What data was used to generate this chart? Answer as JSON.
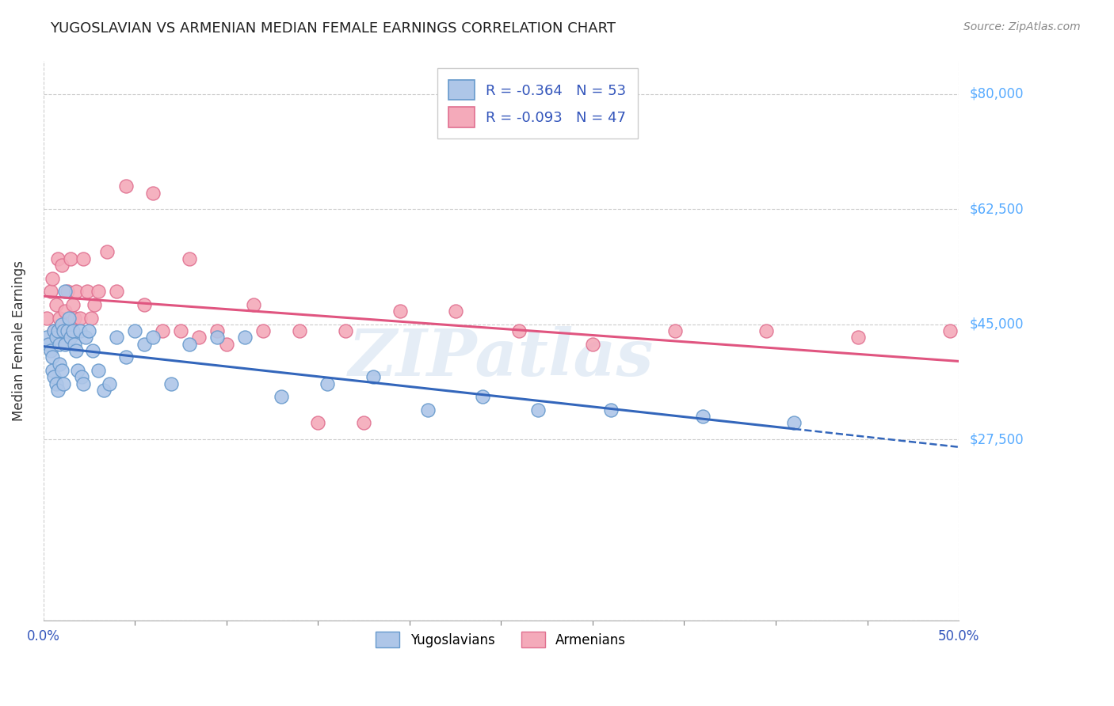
{
  "title": "YUGOSLAVIAN VS ARMENIAN MEDIAN FEMALE EARNINGS CORRELATION CHART",
  "source": "Source: ZipAtlas.com",
  "ylabel": "Median Female Earnings",
  "xlim": [
    0.0,
    0.5
  ],
  "ylim": [
    0,
    85000
  ],
  "yug_R": -0.364,
  "yug_N": 53,
  "arm_R": -0.093,
  "arm_N": 47,
  "blue_face_color": "#AEC6E8",
  "blue_edge_color": "#6699CC",
  "pink_face_color": "#F4AABA",
  "pink_edge_color": "#E07090",
  "blue_line_color": "#3366BB",
  "pink_line_color": "#E05580",
  "watermark": "ZIPatlas",
  "background_color": "#FFFFFF",
  "grid_color": "#CCCCCC",
  "right_label_color": "#55AAFF",
  "legend_text_color": "#3355BB",
  "ylabel_vals": [
    0,
    27500,
    45000,
    62500,
    80000
  ],
  "ylabel_labels": [
    "",
    "$27,500",
    "$45,000",
    "$62,500",
    "$80,000"
  ],
  "yug_points_x": [
    0.002,
    0.003,
    0.004,
    0.005,
    0.005,
    0.006,
    0.006,
    0.007,
    0.007,
    0.008,
    0.008,
    0.009,
    0.009,
    0.01,
    0.01,
    0.011,
    0.011,
    0.012,
    0.012,
    0.013,
    0.014,
    0.015,
    0.016,
    0.017,
    0.018,
    0.019,
    0.02,
    0.021,
    0.022,
    0.023,
    0.025,
    0.027,
    0.03,
    0.033,
    0.036,
    0.04,
    0.045,
    0.05,
    0.055,
    0.06,
    0.07,
    0.08,
    0.095,
    0.11,
    0.13,
    0.155,
    0.18,
    0.21,
    0.24,
    0.27,
    0.31,
    0.36,
    0.41
  ],
  "yug_points_y": [
    43000,
    42000,
    41000,
    40000,
    38000,
    44000,
    37000,
    43000,
    36000,
    44000,
    35000,
    42000,
    39000,
    45000,
    38000,
    44000,
    36000,
    50000,
    42000,
    44000,
    46000,
    43000,
    44000,
    42000,
    41000,
    38000,
    44000,
    37000,
    36000,
    43000,
    44000,
    41000,
    38000,
    35000,
    36000,
    43000,
    40000,
    44000,
    42000,
    43000,
    36000,
    42000,
    43000,
    43000,
    34000,
    36000,
    37000,
    32000,
    34000,
    32000,
    32000,
    31000,
    30000
  ],
  "arm_points_x": [
    0.002,
    0.004,
    0.005,
    0.006,
    0.007,
    0.008,
    0.009,
    0.01,
    0.011,
    0.012,
    0.013,
    0.014,
    0.015,
    0.016,
    0.017,
    0.018,
    0.02,
    0.022,
    0.024,
    0.026,
    0.028,
    0.03,
    0.035,
    0.04,
    0.045,
    0.055,
    0.065,
    0.08,
    0.095,
    0.115,
    0.14,
    0.165,
    0.195,
    0.225,
    0.26,
    0.3,
    0.345,
    0.395,
    0.445,
    0.495,
    0.085,
    0.1,
    0.12,
    0.15,
    0.175,
    0.06,
    0.075
  ],
  "arm_points_y": [
    46000,
    50000,
    52000,
    44000,
    48000,
    55000,
    46000,
    54000,
    44000,
    47000,
    50000,
    44000,
    55000,
    48000,
    46000,
    50000,
    46000,
    55000,
    50000,
    46000,
    48000,
    50000,
    56000,
    50000,
    66000,
    48000,
    44000,
    55000,
    44000,
    48000,
    44000,
    44000,
    47000,
    47000,
    44000,
    42000,
    44000,
    44000,
    43000,
    44000,
    43000,
    42000,
    44000,
    30000,
    30000,
    65000,
    44000
  ]
}
